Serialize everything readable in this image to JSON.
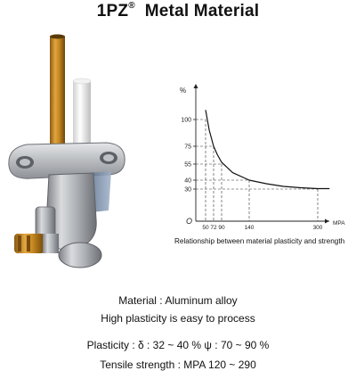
{
  "header": {
    "title_main": "1PZ",
    "title_reg": "®",
    "title_rest": "Metal Material"
  },
  "chart_data": {
    "type": "line",
    "xlabel": "MPA",
    "ylabel": "%",
    "origin_label": "O",
    "x_ticks": [
      "50",
      "72",
      "90",
      "140",
      "300"
    ],
    "y_ticks": [
      "100",
      "75",
      "55",
      "40",
      "30"
    ],
    "x_tick_values": [
      50,
      72,
      90,
      140,
      300
    ],
    "y_tick_values": [
      100,
      75,
      55,
      40,
      30
    ],
    "x": [
      50,
      60,
      72,
      80,
      90,
      110,
      140,
      180,
      220,
      260,
      300,
      340
    ],
    "y": [
      110,
      90,
      75,
      66,
      57,
      47,
      40,
      36,
      33,
      31.5,
      30.5,
      30.5
    ],
    "caption": "Relationship between material plasticity and strength"
  },
  "specs": {
    "material": "Material : Aluminum alloy",
    "plasticity_note": "High plasticity is easy to process",
    "plasticity": "Plasticity : δ : 32 ~ 40 %   ψ : 70 ~ 90 %",
    "tensile": "Tensile strength : MPA 120 ~ 290"
  }
}
